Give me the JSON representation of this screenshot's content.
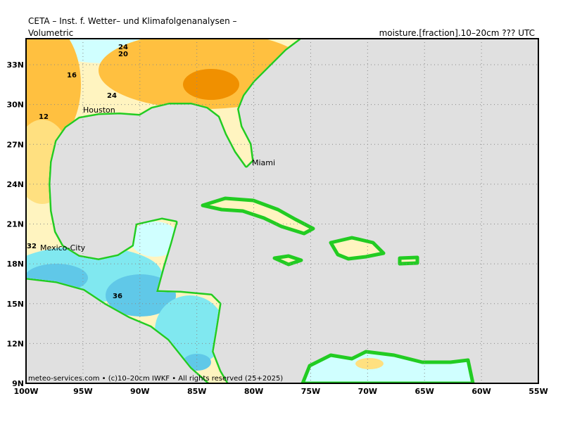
{
  "header": {
    "title": "CETA – Inst. f. Wetter– und Klimafolgenanalysen –",
    "left": "Volumetric",
    "right_prefix": "moisture.",
    "right_unit": "[fraction]",
    "right_suffix": ".10–20cm ??? UTC"
  },
  "map": {
    "lat_labels": [
      "33N",
      "30N",
      "27N",
      "24N",
      "21N",
      "18N",
      "15N",
      "12N",
      "9N"
    ],
    "lon_labels": [
      "100W",
      "95W",
      "90W",
      "85W",
      "80W",
      "75W",
      "70W",
      "65W",
      "60W",
      "55W"
    ],
    "cities": [
      "Houston",
      "Miami",
      "Mexico-City"
    ],
    "contour_labels": [
      24,
      20,
      16,
      24,
      12,
      32,
      36
    ]
  },
  "footer": "meteo-services.com • (c)10–20cm IWKF • All rights reserved (25+2025)"
}
